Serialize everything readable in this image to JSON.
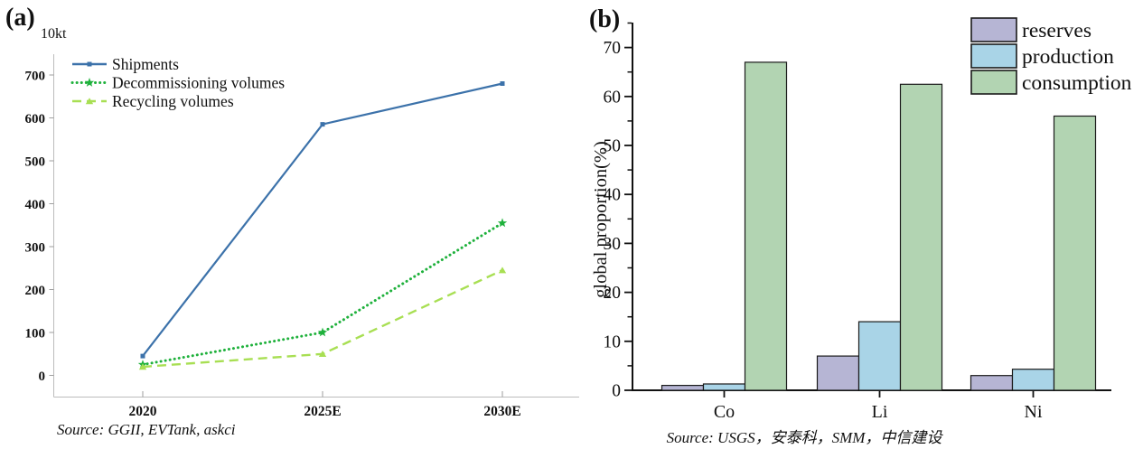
{
  "panels": {
    "a": {
      "label": "(a)"
    },
    "b": {
      "label": "(b)"
    }
  },
  "chart_data": [
    {
      "id": "a",
      "type": "line",
      "unit_label": "10kt",
      "categories": [
        "2020",
        "2025E",
        "2030E"
      ],
      "series": [
        {
          "name": "Shipments",
          "values": [
            45,
            585,
            680
          ],
          "color": "#3c72aa",
          "style": "solid",
          "marker": "square"
        },
        {
          "name": "Decommissioning volumes",
          "values": [
            25,
            100,
            355
          ],
          "color": "#1fb13c",
          "style": "dotted",
          "marker": "star"
        },
        {
          "name": "Recycling volumes",
          "values": [
            20,
            50,
            245
          ],
          "color": "#a8df53",
          "style": "dashed",
          "marker": "triangle"
        }
      ],
      "ylim": [
        0,
        700
      ],
      "ytick_step": 100,
      "yticks": [
        0,
        100,
        200,
        300,
        400,
        500,
        600,
        700
      ],
      "grid": false,
      "legend_position": "top-left",
      "source": "Source: GGII, EVTank, askci"
    },
    {
      "id": "b",
      "type": "bar",
      "ylabel": "global proportion(%)",
      "categories": [
        "Co",
        "Li",
        "Ni"
      ],
      "series": [
        {
          "name": "reserves",
          "values": [
            1,
            7,
            3
          ],
          "color": "#b6b5d4"
        },
        {
          "name": "production",
          "values": [
            1.3,
            14,
            4.3
          ],
          "color": "#a9d4e7"
        },
        {
          "name": "consumption",
          "values": [
            67,
            62.5,
            56
          ],
          "color": "#b2d4b2"
        }
      ],
      "ylim": [
        0,
        75
      ],
      "ytick_step": 10,
      "yticks": [
        0,
        10,
        20,
        30,
        40,
        50,
        60,
        70
      ],
      "grid": false,
      "legend_position": "top-right",
      "source": "Source: USGS，安泰科，SMM，中信建设"
    }
  ]
}
